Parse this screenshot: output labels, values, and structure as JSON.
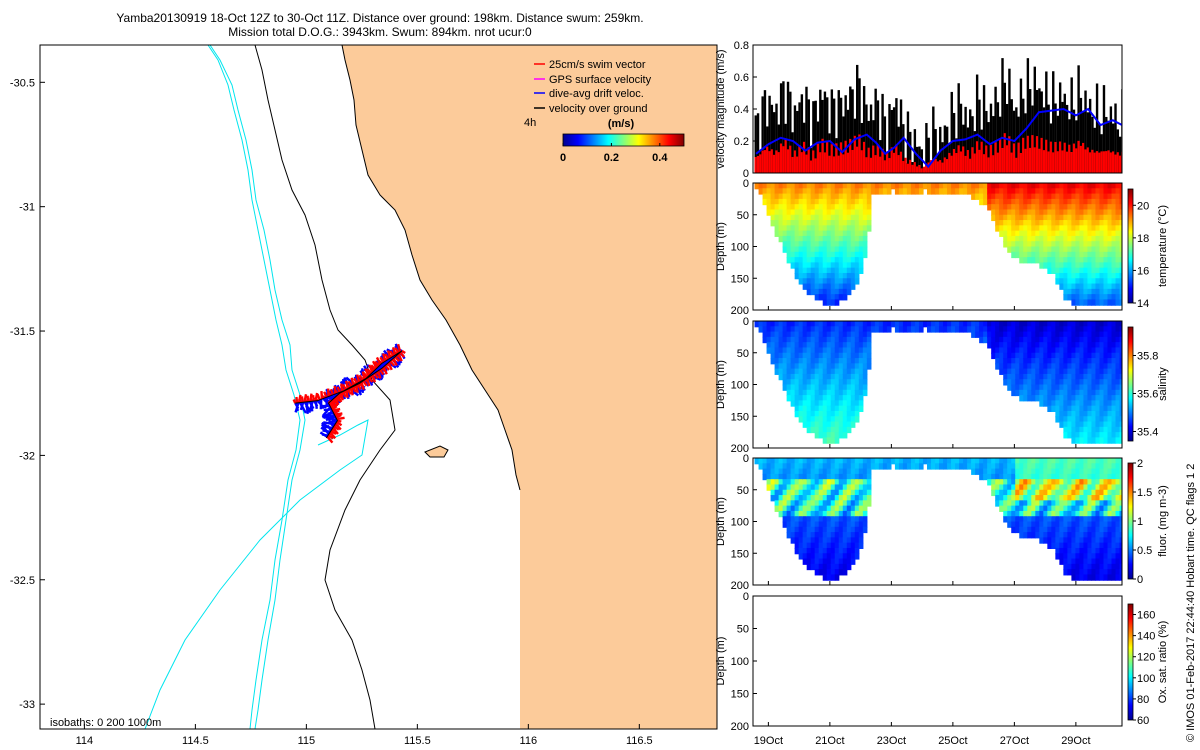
{
  "title": {
    "line1": "Yamba20130919 18-Oct 12Z to 30-Oct 11Z. Distance over ground: 198km. Distance swum: 259km.",
    "line2": "Mission total D.O.G.: 3943km. Swum: 894km. nrot ucur:0"
  },
  "credit": "© IMOS 01-Feb-2017 22:44:40 Hobart time. QC flags 1 2",
  "colors": {
    "land": "#fccb9a",
    "swim_vector": "#ff0000",
    "gps_velocity": "#ff00ff",
    "drift_velocity": "#0000ff",
    "velocity_over_ground": "#000000",
    "isobath": "#00e5ee"
  },
  "chart_data": [
    {
      "type": "map",
      "x_ticks": [
        "114",
        "114.5",
        "115",
        "115.5",
        "116",
        "116.5"
      ],
      "xlim": [
        113.8,
        116.85
      ],
      "y_ticks": [
        "-30.5",
        "-31",
        "-31.5",
        "-32",
        "-32.5",
        "-33"
      ],
      "ylim": [
        -33.1,
        -30.35
      ],
      "legend": {
        "position": "top-right",
        "entries": [
          "25cm/s swim vector",
          "GPS surface velocity",
          "dive-avg drift veloc.",
          "velocity over ground"
        ]
      },
      "colorbar": {
        "label": "(m/s)",
        "side_label": "4h",
        "ticks": [
          "0",
          "0.2",
          "0.4"
        ],
        "range": [
          0,
          0.5
        ]
      },
      "isobaths_label": "isobaths: 0   200  1000m",
      "track": [
        {
          "lon": 114.95,
          "lat": -31.79
        },
        {
          "lon": 115.05,
          "lat": -31.78
        },
        {
          "lon": 115.17,
          "lat": -31.74
        },
        {
          "lon": 115.27,
          "lat": -31.69
        },
        {
          "lon": 115.34,
          "lat": -31.63
        },
        {
          "lon": 115.43,
          "lat": -31.58
        },
        {
          "lon": 115.34,
          "lat": -31.65
        },
        {
          "lon": 115.24,
          "lat": -31.71
        },
        {
          "lon": 115.15,
          "lat": -31.75
        },
        {
          "lon": 115.1,
          "lat": -31.79
        },
        {
          "lon": 115.14,
          "lat": -31.86
        },
        {
          "lon": 115.09,
          "lat": -31.93
        }
      ]
    },
    {
      "type": "line",
      "ylabel": "velocity magnitude (m/s)",
      "ylim": [
        0,
        0.8
      ],
      "y_ticks": [
        "0",
        "0.2",
        "0.4",
        "0.6",
        "0.8"
      ],
      "x_ticks": [
        "19Oct",
        "21Oct",
        "23Oct",
        "25Oct",
        "27Oct",
        "29Oct"
      ],
      "xlim": [
        18.5,
        30.5
      ],
      "series": [
        {
          "color": "#000000",
          "x": [
            18.6,
            18.9,
            19.2,
            19.5,
            19.8,
            20.1,
            20.4,
            20.7,
            21.0,
            21.3,
            21.6,
            21.9,
            22.2,
            22.5,
            22.8,
            23.1,
            23.4,
            23.7,
            24.0,
            24.3,
            24.6,
            24.9,
            25.2,
            25.5,
            25.8,
            26.1,
            26.4,
            26.7,
            27.0,
            27.3,
            27.6,
            27.9,
            28.2,
            28.5,
            28.8,
            29.1,
            29.4,
            29.7,
            30.0,
            30.3
          ],
          "values": [
            0.28,
            0.45,
            0.38,
            0.52,
            0.36,
            0.47,
            0.33,
            0.5,
            0.39,
            0.42,
            0.46,
            0.55,
            0.37,
            0.44,
            0.28,
            0.46,
            0.25,
            0.2,
            0.12,
            0.27,
            0.21,
            0.34,
            0.43,
            0.31,
            0.47,
            0.37,
            0.45,
            0.6,
            0.38,
            0.52,
            0.56,
            0.5,
            0.45,
            0.48,
            0.42,
            0.51,
            0.4,
            0.37,
            0.39,
            0.33
          ]
        },
        {
          "color": "#0000ff",
          "x": [
            18.6,
            19.0,
            19.4,
            19.8,
            20.2,
            20.6,
            21.0,
            21.4,
            21.8,
            22.2,
            22.5,
            22.8,
            23.1,
            23.4,
            23.8,
            24.2,
            24.6,
            25.0,
            25.4,
            25.8,
            26.2,
            26.6,
            27.0,
            27.4,
            27.8,
            28.2,
            28.6,
            29.0,
            29.4,
            29.8,
            30.2,
            30.5
          ],
          "values": [
            0.12,
            0.18,
            0.22,
            0.2,
            0.14,
            0.19,
            0.2,
            0.13,
            0.21,
            0.24,
            0.19,
            0.12,
            0.16,
            0.22,
            0.12,
            0.04,
            0.14,
            0.2,
            0.21,
            0.24,
            0.18,
            0.22,
            0.2,
            0.28,
            0.38,
            0.39,
            0.4,
            0.36,
            0.4,
            0.3,
            0.33,
            0.3
          ]
        },
        {
          "color": "#ff0000",
          "x": [
            18.6,
            18.9,
            19.2,
            19.5,
            19.8,
            20.1,
            20.4,
            20.7,
            21.0,
            21.3,
            21.6,
            21.9,
            22.2,
            22.5,
            22.8,
            23.1,
            23.4,
            23.7,
            24.0,
            24.3,
            24.6,
            24.9,
            25.2,
            25.5,
            25.8,
            26.1,
            26.4,
            26.7,
            27.0,
            27.3,
            27.6,
            27.9,
            28.2,
            28.5,
            28.8,
            29.1,
            29.4,
            29.7,
            30.0,
            30.3
          ],
          "values": [
            0.1,
            0.16,
            0.12,
            0.2,
            0.11,
            0.17,
            0.1,
            0.18,
            0.14,
            0.15,
            0.17,
            0.21,
            0.12,
            0.15,
            0.1,
            0.16,
            0.08,
            0.06,
            0.03,
            0.09,
            0.07,
            0.12,
            0.16,
            0.11,
            0.18,
            0.13,
            0.16,
            0.22,
            0.13,
            0.19,
            0.2,
            0.18,
            0.16,
            0.17,
            0.15,
            0.19,
            0.14,
            0.13,
            0.14,
            0.12
          ]
        }
      ]
    },
    {
      "type": "heatmap",
      "ylabel": "Depth (m)",
      "clabel": "temperature (°C)",
      "ylim": [
        200,
        0
      ],
      "y_ticks": [
        "0",
        "50",
        "100",
        "150",
        "200"
      ],
      "clim": [
        14,
        21
      ],
      "c_ticks": [
        "14",
        "16",
        "18",
        "20"
      ],
      "x_ticks": [
        "19Oct",
        "21Oct",
        "23Oct",
        "25Oct",
        "27Oct",
        "29Oct"
      ],
      "xlim": [
        18.5,
        30.5
      ],
      "depth_profile": {
        "x": [
          18.6,
          19.0,
          19.5,
          20.0,
          20.5,
          20.9,
          21.3,
          21.7,
          22.0,
          22.2,
          22.3,
          23.0,
          23.6,
          24.0,
          24.4,
          24.8,
          25.4,
          26.0,
          26.4,
          26.8,
          27.3,
          27.8,
          28.2,
          28.6,
          29.0,
          29.5,
          30.0,
          30.5
        ],
        "max_depth": [
          5,
          55,
          110,
          155,
          180,
          186,
          182,
          165,
          130,
          70,
          15,
          8,
          12,
          8,
          10,
          12,
          15,
          30,
          70,
          110,
          122,
          125,
          140,
          180,
          188,
          188,
          186,
          188
        ]
      },
      "surface_value": 19.2,
      "bottom_value": 15.0
    },
    {
      "type": "heatmap",
      "ylabel": "Depth (m)",
      "clabel": "salinity",
      "ylim": [
        200,
        0
      ],
      "y_ticks": [
        "0",
        "50",
        "100",
        "150",
        "200"
      ],
      "clim": [
        35.35,
        35.95
      ],
      "c_ticks": [
        "35.4",
        "35.6",
        "35.8"
      ],
      "x_ticks": [
        "19Oct",
        "21Oct",
        "23Oct",
        "25Oct",
        "27Oct",
        "29Oct"
      ],
      "xlim": [
        18.5,
        30.5
      ],
      "depth_profile": {
        "x": [
          18.6,
          19.0,
          19.5,
          20.0,
          20.5,
          20.9,
          21.3,
          21.7,
          22.0,
          22.2,
          22.3,
          23.0,
          23.6,
          24.0,
          24.4,
          24.8,
          25.4,
          26.0,
          26.4,
          26.8,
          27.3,
          27.8,
          28.2,
          28.6,
          29.0,
          29.5,
          30.0,
          30.5
        ],
        "max_depth": [
          5,
          55,
          110,
          155,
          180,
          186,
          182,
          165,
          130,
          70,
          15,
          8,
          12,
          8,
          10,
          12,
          15,
          30,
          70,
          110,
          122,
          125,
          140,
          180,
          188,
          188,
          186,
          188
        ]
      },
      "surface_value": 35.45,
      "bottom_value": 35.62
    },
    {
      "type": "heatmap",
      "ylabel": "Depth (m)",
      "clabel": "fluor. (mg m-3)",
      "ylim": [
        200,
        0
      ],
      "y_ticks": [
        "0",
        "50",
        "100",
        "150",
        "200"
      ],
      "clim": [
        0,
        2
      ],
      "c_ticks": [
        "0",
        "0.5",
        "1",
        "1.5",
        "2"
      ],
      "x_ticks": [
        "19Oct",
        "21Oct",
        "23Oct",
        "25Oct",
        "27Oct",
        "29Oct"
      ],
      "xlim": [
        18.5,
        30.5
      ],
      "depth_profile": {
        "x": [
          18.6,
          19.0,
          19.5,
          20.0,
          20.5,
          20.9,
          21.3,
          21.7,
          22.0,
          22.2,
          22.3,
          23.0,
          23.6,
          24.0,
          24.4,
          24.8,
          25.4,
          26.0,
          26.4,
          26.8,
          27.3,
          27.8,
          28.2,
          28.6,
          29.0,
          29.5,
          30.0,
          30.5
        ],
        "max_depth": [
          5,
          55,
          110,
          155,
          180,
          186,
          182,
          165,
          130,
          70,
          15,
          8,
          12,
          8,
          10,
          12,
          15,
          30,
          70,
          110,
          122,
          125,
          140,
          180,
          188,
          188,
          186,
          188
        ]
      },
      "surface_value": 0.6,
      "bottom_value": 0.2
    },
    {
      "type": "heatmap",
      "ylabel": "Depth (m)",
      "clabel": "Ox. sat. ratio (%)",
      "ylim": [
        200,
        0
      ],
      "y_ticks": [
        "0",
        "50",
        "100",
        "150",
        "200"
      ],
      "clim": [
        60,
        170
      ],
      "c_ticks": [
        "60",
        "80",
        "100",
        "120",
        "140",
        "160"
      ],
      "x_ticks": [
        "19Oct",
        "21Oct",
        "23Oct",
        "25Oct",
        "27Oct",
        "29Oct"
      ],
      "xlim": [
        18.5,
        30.5
      ]
    }
  ]
}
